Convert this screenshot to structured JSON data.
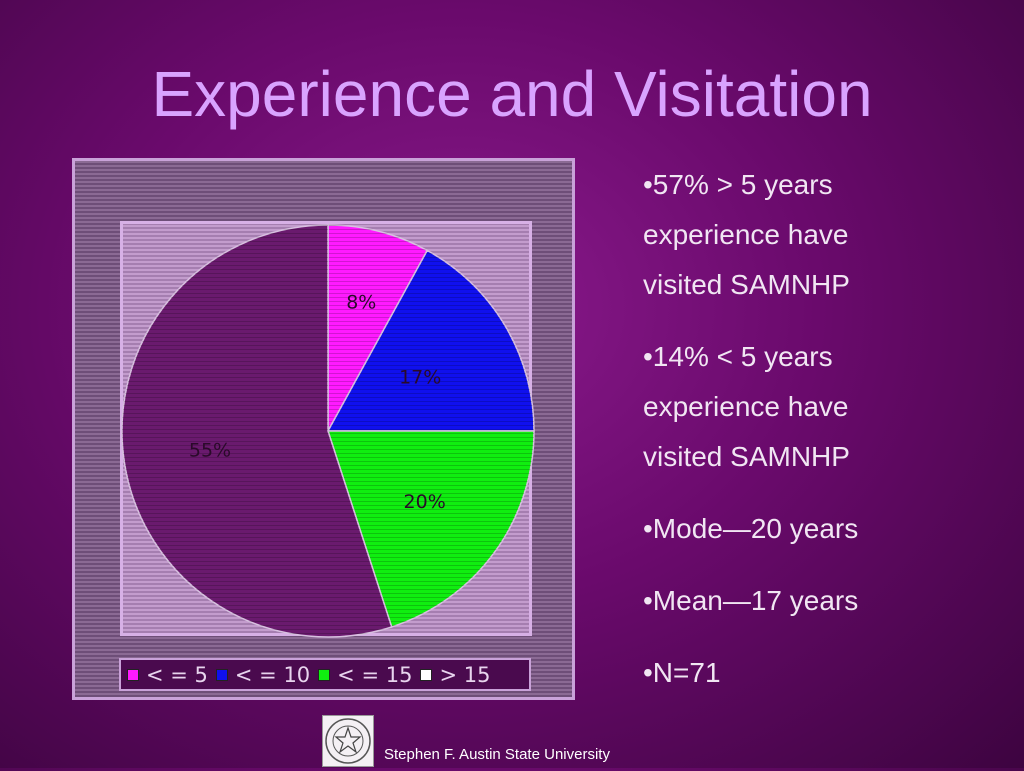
{
  "slide": {
    "title": "Experience and Visitation",
    "footer": "Stephen F. Austin State University"
  },
  "bullets": [
    "•57% > 5 years experience have visited SAMNHP",
    "•14% < 5 years experience have visited SAMNHP",
    "•Mode—20 years",
    "•Mean—17 years",
    "•N=71"
  ],
  "chart_data": {
    "type": "pie",
    "title": "",
    "categories": [
      "< = 5",
      "< = 10",
      "< = 15",
      "> 15"
    ],
    "values": [
      8,
      17,
      20,
      55
    ],
    "labels": [
      "8%",
      "17%",
      "20%",
      "55%"
    ],
    "colors": [
      "#ff1aff",
      "#1010ee",
      "#10ee10",
      "#6a1a6e"
    ],
    "legend_position": "bottom",
    "legend_entries": [
      "< = 5",
      "< = 10",
      "< = 15",
      "> 15"
    ]
  },
  "icons": {
    "seal": "university-seal-icon"
  }
}
